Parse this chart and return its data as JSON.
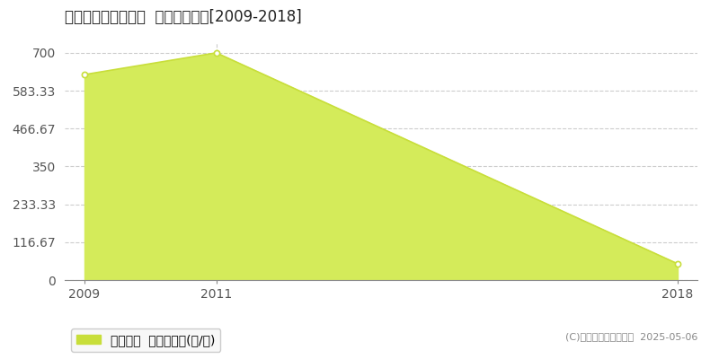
{
  "title": "邑智郡邑南町八色石  林地価格推移[2009-2018]",
  "years": [
    2009,
    2011,
    2018
  ],
  "values": [
    633,
    700,
    50
  ],
  "fill_color": "#d4eb5a",
  "line_color": "#c8de3a",
  "marker_color": "#c8de3a",
  "bg_color": "#ffffff",
  "plot_bg_color": "#ffffff",
  "yticks": [
    0,
    116.67,
    233.33,
    350,
    466.67,
    583.33,
    700
  ],
  "ytick_labels": [
    "0",
    "116.67",
    "233.33",
    "350",
    "466.67",
    "583.33",
    "700"
  ],
  "xticks": [
    2009,
    2011,
    2018
  ],
  "xlim_min": 2008.7,
  "xlim_max": 2018.3,
  "ylim_min": 0,
  "ylim_max": 730,
  "grid_color": "#cccccc",
  "legend_label": "林地価格  平均坪単価(円/坪)",
  "legend_color": "#c8de3a",
  "copyright_text": "(C)土地価格ドットコム  2025-05-06",
  "title_fontsize": 12,
  "tick_fontsize": 9,
  "legend_fontsize": 10
}
